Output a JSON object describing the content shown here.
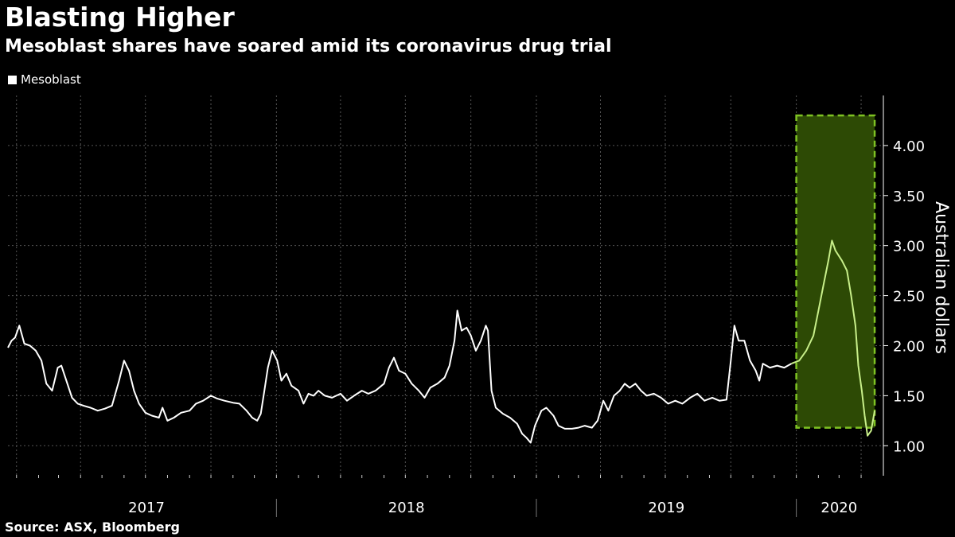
{
  "header": {
    "title": "Blasting Higher",
    "subtitle": "Mesoblast shares have soared amid its coronavirus drug trial"
  },
  "legend": {
    "label": "Mesoblast"
  },
  "source": "Source: ASX, Bloomberg",
  "colors": {
    "background": "#000000",
    "line": "#ffffff",
    "highlight_fill": "#2d4a05",
    "highlight_border": "#7ec223",
    "highlight_line": "#c8ef8a",
    "grid": "#555555"
  },
  "chart_data": {
    "type": "line",
    "title": "Blasting Higher",
    "subtitle": "Mesoblast shares have soared amid its coronavirus drug trial",
    "ylabel": "Australian dollars",
    "xlabel": "",
    "ylim": [
      0.7,
      4.5
    ],
    "yticks": [
      "1.00",
      "1.50",
      "2.00",
      "2.50",
      "3.00",
      "3.50",
      "4.00"
    ],
    "xticks": [
      "2017",
      "2018",
      "2019",
      "2020"
    ],
    "xlim": [
      "2016-12-20",
      "2020-04-30"
    ],
    "grid": true,
    "legend_position": "top-left",
    "highlight": {
      "x_start": "2020-01-01",
      "x_end": "2020-04-20",
      "y_start": 1.18,
      "y_end": 4.3
    },
    "series": [
      {
        "name": "Mesoblast",
        "points": [
          [
            "2016-12-20",
            1.98
          ],
          [
            "2016-12-25",
            2.05
          ],
          [
            "2016-12-30",
            2.08
          ],
          [
            "2017-01-05",
            2.2
          ],
          [
            "2017-01-12",
            2.02
          ],
          [
            "2017-01-20",
            2.0
          ],
          [
            "2017-01-28",
            1.95
          ],
          [
            "2017-02-05",
            1.85
          ],
          [
            "2017-02-12",
            1.62
          ],
          [
            "2017-02-20",
            1.55
          ],
          [
            "2017-02-28",
            1.78
          ],
          [
            "2017-03-05",
            1.8
          ],
          [
            "2017-03-12",
            1.65
          ],
          [
            "2017-03-20",
            1.48
          ],
          [
            "2017-03-28",
            1.42
          ],
          [
            "2017-04-05",
            1.4
          ],
          [
            "2017-04-15",
            1.38
          ],
          [
            "2017-04-25",
            1.35
          ],
          [
            "2017-05-05",
            1.37
          ],
          [
            "2017-05-15",
            1.4
          ],
          [
            "2017-05-25",
            1.65
          ],
          [
            "2017-06-01",
            1.85
          ],
          [
            "2017-06-08",
            1.75
          ],
          [
            "2017-06-15",
            1.55
          ],
          [
            "2017-06-22",
            1.42
          ],
          [
            "2017-07-01",
            1.33
          ],
          [
            "2017-07-10",
            1.3
          ],
          [
            "2017-07-20",
            1.28
          ],
          [
            "2017-07-25",
            1.38
          ],
          [
            "2017-08-01",
            1.25
          ],
          [
            "2017-08-10",
            1.28
          ],
          [
            "2017-08-20",
            1.33
          ],
          [
            "2017-09-01",
            1.35
          ],
          [
            "2017-09-10",
            1.42
          ],
          [
            "2017-09-20",
            1.45
          ],
          [
            "2017-10-01",
            1.5
          ],
          [
            "2017-10-10",
            1.47
          ],
          [
            "2017-10-20",
            1.45
          ],
          [
            "2017-11-01",
            1.43
          ],
          [
            "2017-11-10",
            1.42
          ],
          [
            "2017-11-20",
            1.35
          ],
          [
            "2017-11-28",
            1.28
          ],
          [
            "2017-12-05",
            1.25
          ],
          [
            "2017-12-10",
            1.32
          ],
          [
            "2017-12-15",
            1.55
          ],
          [
            "2017-12-20",
            1.78
          ],
          [
            "2017-12-26",
            1.95
          ],
          [
            "2018-01-02",
            1.85
          ],
          [
            "2018-01-08",
            1.65
          ],
          [
            "2018-01-15",
            1.72
          ],
          [
            "2018-01-22",
            1.6
          ],
          [
            "2018-02-01",
            1.55
          ],
          [
            "2018-02-08",
            1.42
          ],
          [
            "2018-02-15",
            1.52
          ],
          [
            "2018-02-22",
            1.5
          ],
          [
            "2018-03-01",
            1.55
          ],
          [
            "2018-03-10",
            1.5
          ],
          [
            "2018-03-20",
            1.48
          ],
          [
            "2018-04-01",
            1.52
          ],
          [
            "2018-04-10",
            1.45
          ],
          [
            "2018-04-20",
            1.5
          ],
          [
            "2018-05-01",
            1.55
          ],
          [
            "2018-05-10",
            1.52
          ],
          [
            "2018-05-20",
            1.55
          ],
          [
            "2018-06-01",
            1.62
          ],
          [
            "2018-06-08",
            1.78
          ],
          [
            "2018-06-15",
            1.88
          ],
          [
            "2018-06-22",
            1.75
          ],
          [
            "2018-07-01",
            1.72
          ],
          [
            "2018-07-10",
            1.62
          ],
          [
            "2018-07-20",
            1.55
          ],
          [
            "2018-07-28",
            1.48
          ],
          [
            "2018-08-05",
            1.58
          ],
          [
            "2018-08-15",
            1.62
          ],
          [
            "2018-08-25",
            1.68
          ],
          [
            "2018-09-01",
            1.8
          ],
          [
            "2018-09-08",
            2.05
          ],
          [
            "2018-09-12",
            2.35
          ],
          [
            "2018-09-18",
            2.15
          ],
          [
            "2018-09-25",
            2.18
          ],
          [
            "2018-10-01",
            2.1
          ],
          [
            "2018-10-08",
            1.95
          ],
          [
            "2018-10-15",
            2.05
          ],
          [
            "2018-10-22",
            2.2
          ],
          [
            "2018-10-25",
            2.15
          ],
          [
            "2018-10-30",
            1.55
          ],
          [
            "2018-11-05",
            1.38
          ],
          [
            "2018-11-15",
            1.32
          ],
          [
            "2018-11-25",
            1.28
          ],
          [
            "2018-12-05",
            1.22
          ],
          [
            "2018-12-12",
            1.12
          ],
          [
            "2018-12-18",
            1.08
          ],
          [
            "2018-12-24",
            1.03
          ],
          [
            "2018-12-30",
            1.2
          ],
          [
            "2019-01-08",
            1.35
          ],
          [
            "2019-01-15",
            1.38
          ],
          [
            "2019-01-25",
            1.3
          ],
          [
            "2019-02-01",
            1.2
          ],
          [
            "2019-02-10",
            1.17
          ],
          [
            "2019-02-20",
            1.17
          ],
          [
            "2019-03-01",
            1.18
          ],
          [
            "2019-03-10",
            1.2
          ],
          [
            "2019-03-20",
            1.18
          ],
          [
            "2019-03-28",
            1.25
          ],
          [
            "2019-04-05",
            1.45
          ],
          [
            "2019-04-12",
            1.35
          ],
          [
            "2019-04-20",
            1.5
          ],
          [
            "2019-04-28",
            1.55
          ],
          [
            "2019-05-05",
            1.62
          ],
          [
            "2019-05-12",
            1.58
          ],
          [
            "2019-05-20",
            1.62
          ],
          [
            "2019-05-28",
            1.55
          ],
          [
            "2019-06-05",
            1.5
          ],
          [
            "2019-06-15",
            1.52
          ],
          [
            "2019-06-25",
            1.48
          ],
          [
            "2019-07-05",
            1.42
          ],
          [
            "2019-07-15",
            1.45
          ],
          [
            "2019-07-25",
            1.42
          ],
          [
            "2019-08-05",
            1.48
          ],
          [
            "2019-08-15",
            1.52
          ],
          [
            "2019-08-25",
            1.45
          ],
          [
            "2019-09-05",
            1.48
          ],
          [
            "2019-09-15",
            1.45
          ],
          [
            "2019-09-25",
            1.46
          ],
          [
            "2019-10-01",
            1.85
          ],
          [
            "2019-10-06",
            2.2
          ],
          [
            "2019-10-12",
            2.05
          ],
          [
            "2019-10-20",
            2.05
          ],
          [
            "2019-10-28",
            1.85
          ],
          [
            "2019-11-05",
            1.75
          ],
          [
            "2019-11-10",
            1.65
          ],
          [
            "2019-11-15",
            1.82
          ],
          [
            "2019-11-25",
            1.78
          ],
          [
            "2019-12-05",
            1.8
          ],
          [
            "2019-12-15",
            1.78
          ],
          [
            "2019-12-25",
            1.82
          ],
          [
            "2020-01-05",
            1.85
          ],
          [
            "2020-01-15",
            1.95
          ],
          [
            "2020-01-25",
            2.1
          ],
          [
            "2020-02-01",
            2.35
          ],
          [
            "2020-02-08",
            2.6
          ],
          [
            "2020-02-15",
            2.85
          ],
          [
            "2020-02-20",
            3.05
          ],
          [
            "2020-02-25",
            2.95
          ],
          [
            "2020-03-05",
            2.85
          ],
          [
            "2020-03-12",
            2.75
          ],
          [
            "2020-03-18",
            2.5
          ],
          [
            "2020-03-24",
            2.2
          ],
          [
            "2020-03-28",
            1.8
          ],
          [
            "2020-04-02",
            1.55
          ],
          [
            "2020-04-06",
            1.3
          ],
          [
            "2020-04-10",
            1.1
          ],
          [
            "2020-04-15",
            1.15
          ],
          [
            "2020-04-20",
            1.35
          ]
        ]
      }
    ]
  }
}
